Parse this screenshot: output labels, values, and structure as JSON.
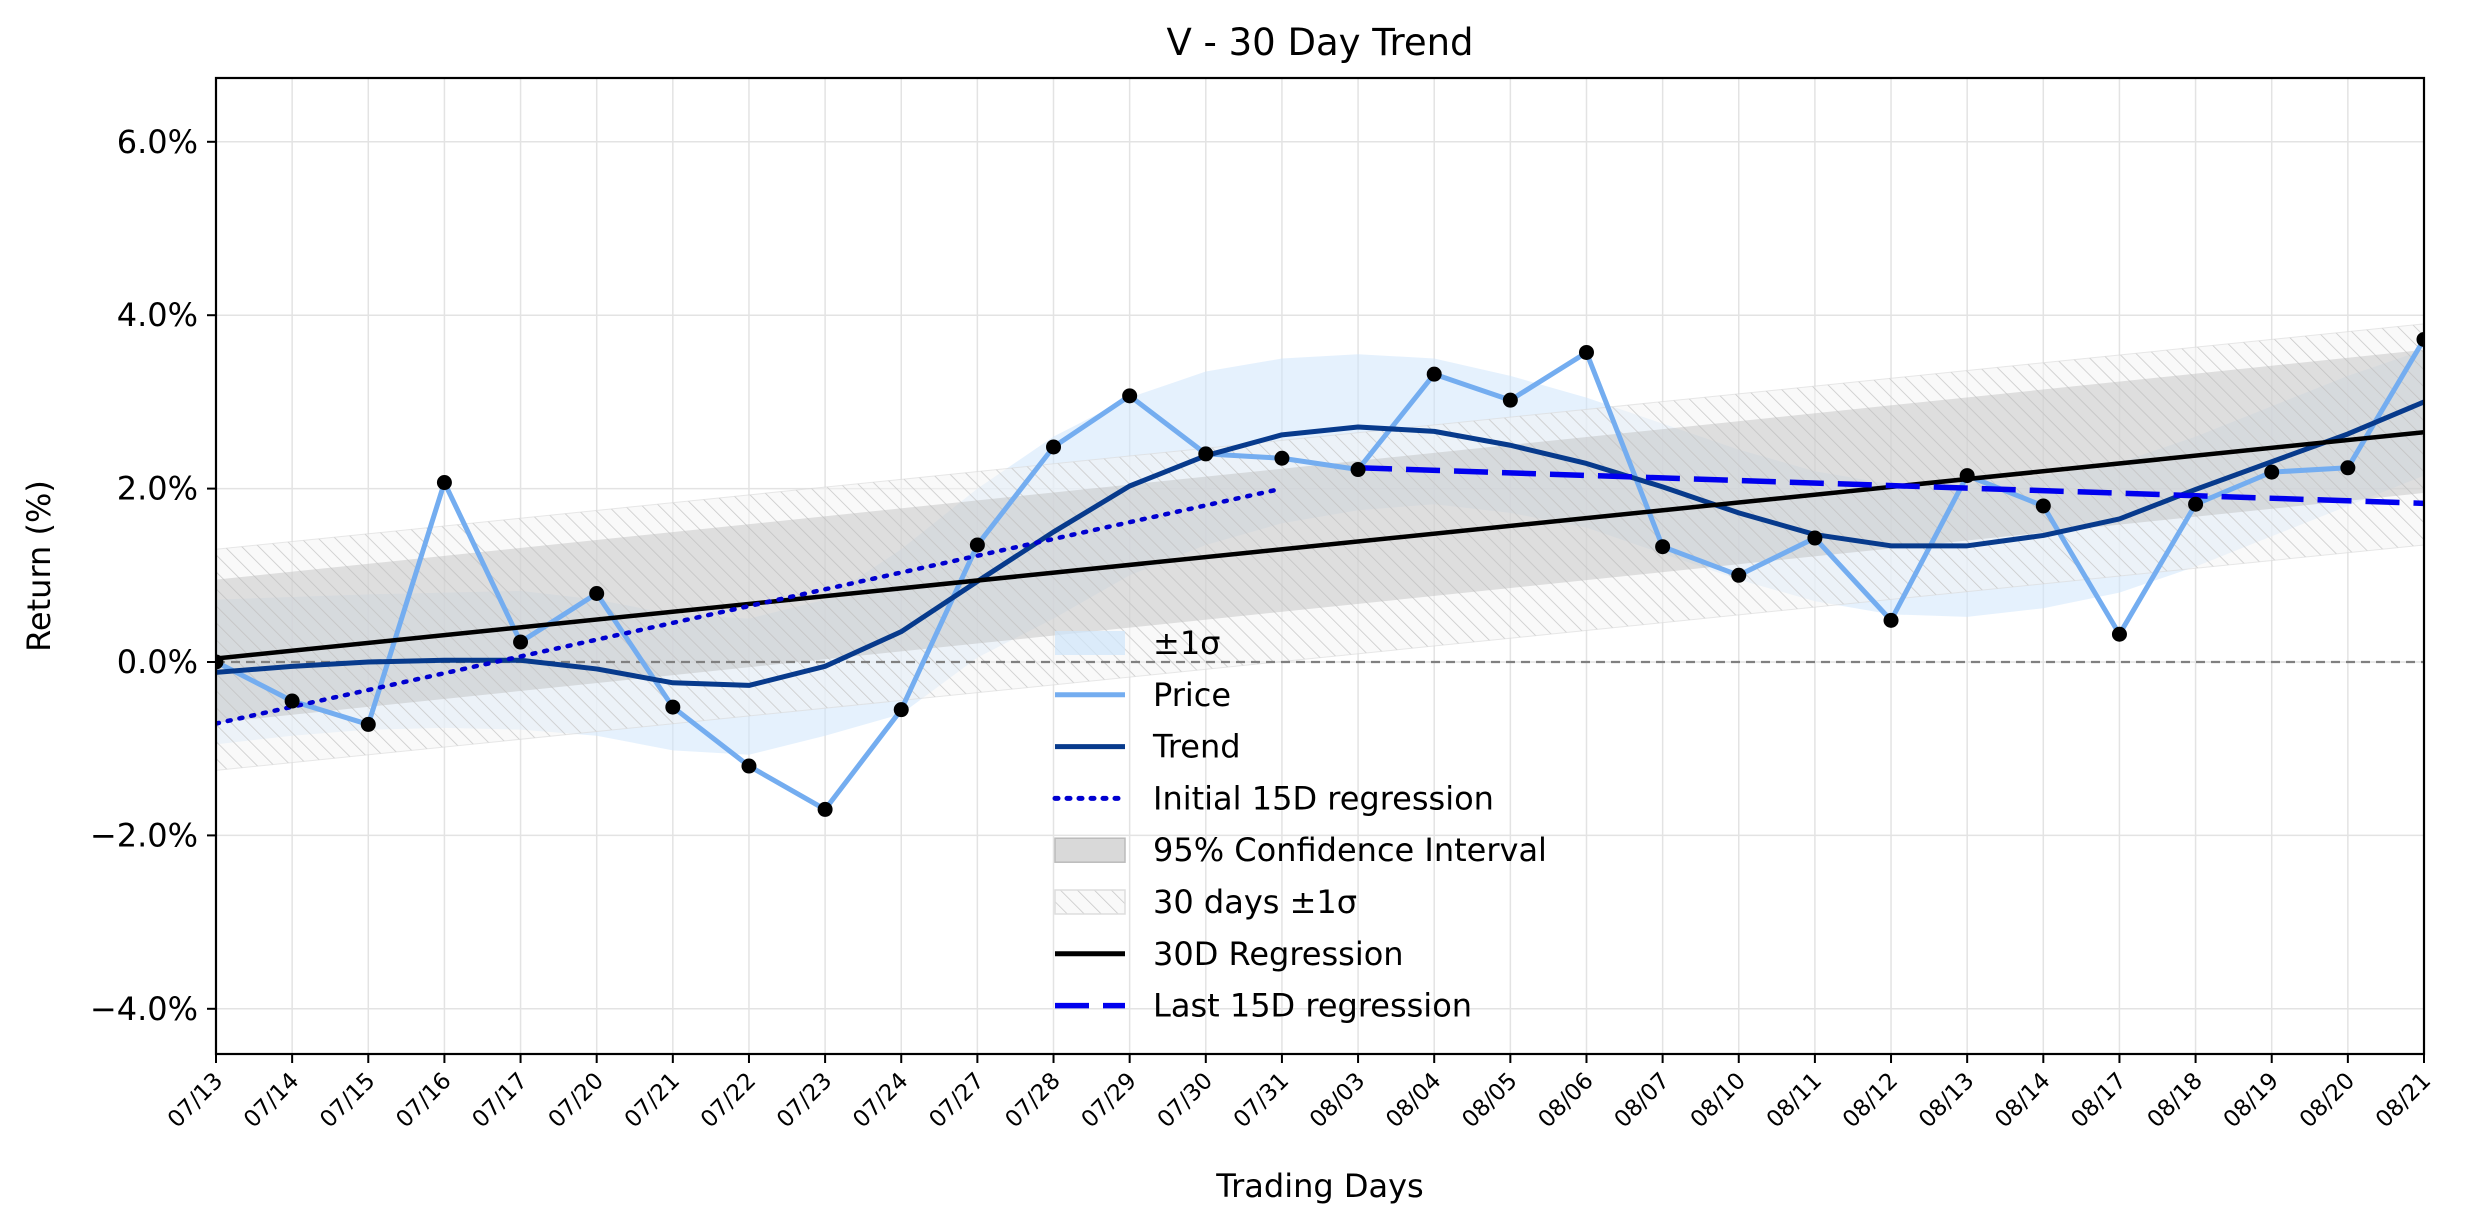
{
  "chart_data": {
    "type": "line",
    "title": "V - 30 Day Trend",
    "xlabel": "Trading Days",
    "ylabel": "Return (%)",
    "categories": [
      "07/13",
      "07/14",
      "07/15",
      "07/16",
      "07/17",
      "07/20",
      "07/21",
      "07/22",
      "07/23",
      "07/24",
      "07/27",
      "07/28",
      "07/29",
      "07/30",
      "07/31",
      "08/03",
      "08/04",
      "08/05",
      "08/06",
      "08/07",
      "08/10",
      "08/11",
      "08/12",
      "08/13",
      "08/14",
      "08/17",
      "08/18",
      "08/19",
      "08/20",
      "08/21"
    ],
    "ylim": [
      -4.5,
      6.75
    ],
    "yticks": [
      -4,
      -2,
      0,
      2,
      4,
      6
    ],
    "ytick_labels": [
      "−4.0%",
      "−2.0%",
      "0.0%",
      "2.0%",
      "4.0%",
      "6.0%"
    ],
    "grid": true,
    "legend_position": "bottom-center",
    "legend": [
      {
        "label": "±1σ",
        "kind": "band",
        "color": "#cfe6fb"
      },
      {
        "label": "Price",
        "kind": "line",
        "color": "#74adf0"
      },
      {
        "label": "Trend",
        "kind": "line",
        "color": "#073a8c"
      },
      {
        "label": "Initial 15D regression",
        "kind": "dotted",
        "color": "#0000d0"
      },
      {
        "label": "95% Confidence Interval",
        "kind": "fill",
        "color": "#d9d9d9"
      },
      {
        "label": "30 days ±1σ",
        "kind": "hatch",
        "color": "#cccccc"
      },
      {
        "label": "30D Regression",
        "kind": "line",
        "color": "#000000"
      },
      {
        "label": "Last 15D regression",
        "kind": "dashed",
        "color": "#0000ee"
      }
    ],
    "series": [
      {
        "name": "Price",
        "values": [
          0.0,
          -0.45,
          -0.72,
          2.07,
          0.23,
          0.79,
          -0.52,
          -1.2,
          -1.7,
          -0.55,
          1.35,
          2.48,
          3.07,
          2.4,
          2.35,
          2.22,
          3.32,
          3.02,
          3.57,
          1.33,
          1.0,
          1.43,
          0.48,
          2.15,
          1.8,
          0.32,
          1.82,
          2.19,
          2.24,
          3.72
        ]
      },
      {
        "name": "Trend",
        "values": [
          -0.12,
          -0.05,
          0.0,
          0.02,
          0.02,
          -0.08,
          -0.24,
          -0.27,
          -0.05,
          0.35,
          0.93,
          1.5,
          2.03,
          2.38,
          2.62,
          2.71,
          2.66,
          2.5,
          2.29,
          2.02,
          1.72,
          1.47,
          1.34,
          1.34,
          1.46,
          1.65,
          1.99,
          2.31,
          2.63,
          3.0
        ]
      },
      {
        "name": "Initial 15D regression",
        "x_range": [
          0,
          14
        ],
        "endpoints": [
          -0.71,
          2.0
        ]
      },
      {
        "name": "Last 15D regression",
        "x_range": [
          15,
          29
        ],
        "endpoints": [
          2.24,
          1.83
        ]
      },
      {
        "name": "30D Regression",
        "x_range": [
          0,
          29
        ],
        "endpoints": [
          0.04,
          2.65
        ]
      },
      {
        "name": "95% Confidence Interval",
        "x_range": [
          0,
          29
        ],
        "lower": [
          -0.7,
          1.95
        ],
        "upper": [
          0.95,
          3.6
        ]
      },
      {
        "name": "30 days ±1σ",
        "x_range": [
          0,
          29
        ],
        "lower": [
          -1.25,
          1.35
        ],
        "upper": [
          1.3,
          3.9
        ]
      },
      {
        "name": "±1σ",
        "upper": [
          0.72,
          0.75,
          0.78,
          0.8,
          0.82,
          0.72,
          0.55,
          0.5,
          0.72,
          1.3,
          2.0,
          2.6,
          3.05,
          3.35,
          3.5,
          3.55,
          3.5,
          3.3,
          3.05,
          2.75,
          2.45,
          2.2,
          2.05,
          2.05,
          2.15,
          2.3,
          2.6,
          2.95,
          3.3,
          3.6
        ],
        "lower": [
          -0.95,
          -0.85,
          -0.78,
          -0.76,
          -0.78,
          -0.85,
          -1.02,
          -1.07,
          -0.85,
          -0.6,
          0.05,
          0.5,
          1.0,
          1.35,
          1.6,
          1.75,
          1.82,
          1.72,
          1.55,
          1.25,
          0.95,
          0.7,
          0.55,
          0.52,
          0.62,
          0.8,
          1.1,
          1.45,
          1.8,
          2.15
        ]
      }
    ]
  }
}
